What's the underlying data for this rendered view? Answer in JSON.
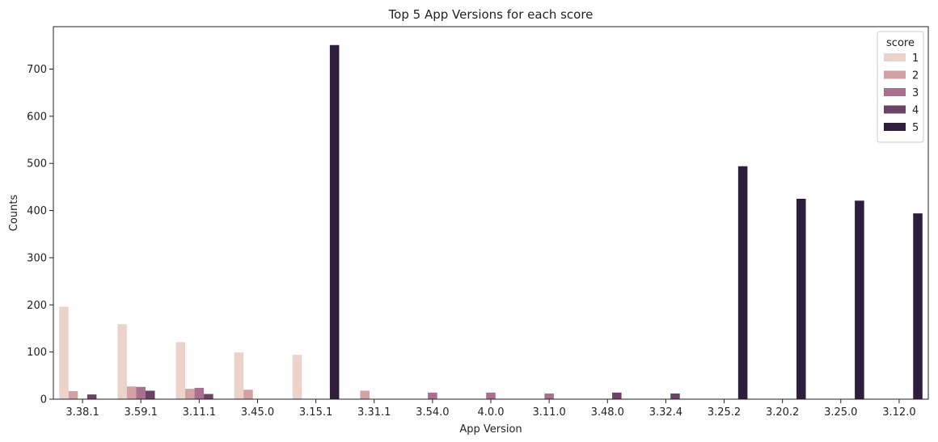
{
  "chart_data": {
    "type": "bar",
    "title": "Top 5 App Versions for each score",
    "xlabel": "App Version",
    "ylabel": "Counts",
    "ylim": [
      0,
      790
    ],
    "yticks": [
      0,
      100,
      200,
      300,
      400,
      500,
      600,
      700
    ],
    "grid": false,
    "legend": {
      "title": "score",
      "placement": "top-right"
    },
    "categories": [
      "3.38.1",
      "3.59.1",
      "3.11.1",
      "3.45.0",
      "3.15.1",
      "3.31.1",
      "3.54.0",
      "4.0.0",
      "3.11.0",
      "3.48.0",
      "3.32.4",
      "3.25.2",
      "3.20.2",
      "3.25.0",
      "3.12.0"
    ],
    "series": [
      {
        "name": "1",
        "color": "#ebd3cc",
        "values": [
          196,
          159,
          121,
          99,
          94,
          0,
          0,
          0,
          0,
          0,
          0,
          0,
          0,
          0,
          0
        ]
      },
      {
        "name": "2",
        "color": "#d1a1a4",
        "values": [
          17,
          27,
          22,
          20,
          0,
          18,
          0,
          0,
          0,
          0,
          0,
          0,
          0,
          0,
          0
        ]
      },
      {
        "name": "3",
        "color": "#a8708e",
        "values": [
          0,
          26,
          24,
          0,
          0,
          0,
          14,
          14,
          12,
          0,
          0,
          0,
          0,
          0,
          0
        ]
      },
      {
        "name": "4",
        "color": "#6c4267",
        "values": [
          10,
          18,
          11,
          0,
          0,
          0,
          0,
          0,
          0,
          14,
          12,
          0,
          0,
          0,
          0
        ]
      },
      {
        "name": "5",
        "color": "#2d1e3e",
        "values": [
          0,
          0,
          0,
          0,
          751,
          0,
          0,
          0,
          0,
          0,
          0,
          494,
          425,
          421,
          394
        ]
      }
    ]
  }
}
